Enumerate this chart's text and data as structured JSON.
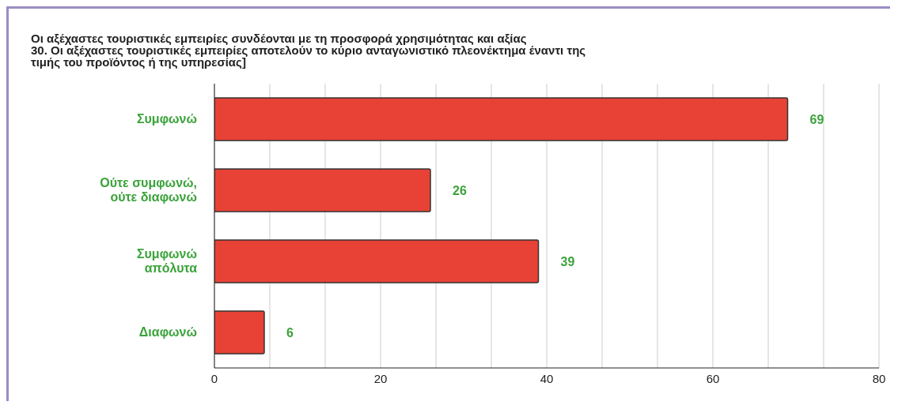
{
  "chart_data": {
    "type": "bar",
    "orientation": "horizontal",
    "title": "Οι αξέχαστες τουριστικές εμπειρίες συνδέονται με τη προσφορά χρησιμότητας και αξίας\n30. Οι αξέχαστες τουριστικές εμπειρίες αποτελούν το κύριο ανταγωνιστικό πλεονέκτημα έναντι της\nτιμής του προϊόντος ή της υπηρεσίας]",
    "categories": [
      "Συμφωνώ",
      "Ούτε συμφωνώ, ούτε διαφωνώ",
      "Συμφωνώ απόλυτα",
      "Διαφωνώ"
    ],
    "values": [
      69,
      26,
      39,
      6
    ],
    "color": "#e84236",
    "data_labels": true,
    "xlim": [
      0,
      80
    ],
    "xticks": [
      0,
      {
        "value": 6.667,
        "label": null
      },
      {
        "value": 13.333,
        "label": null
      },
      20,
      {
        "value": 26.667,
        "label": null
      },
      {
        "value": 33.333,
        "label": null
      },
      40,
      {
        "value": 46.667,
        "label": null
      },
      {
        "value": 53.333,
        "label": null
      },
      60,
      {
        "value": 66.667,
        "label": null
      },
      {
        "value": 73.333,
        "label": null
      },
      80
    ],
    "grid": "x"
  }
}
